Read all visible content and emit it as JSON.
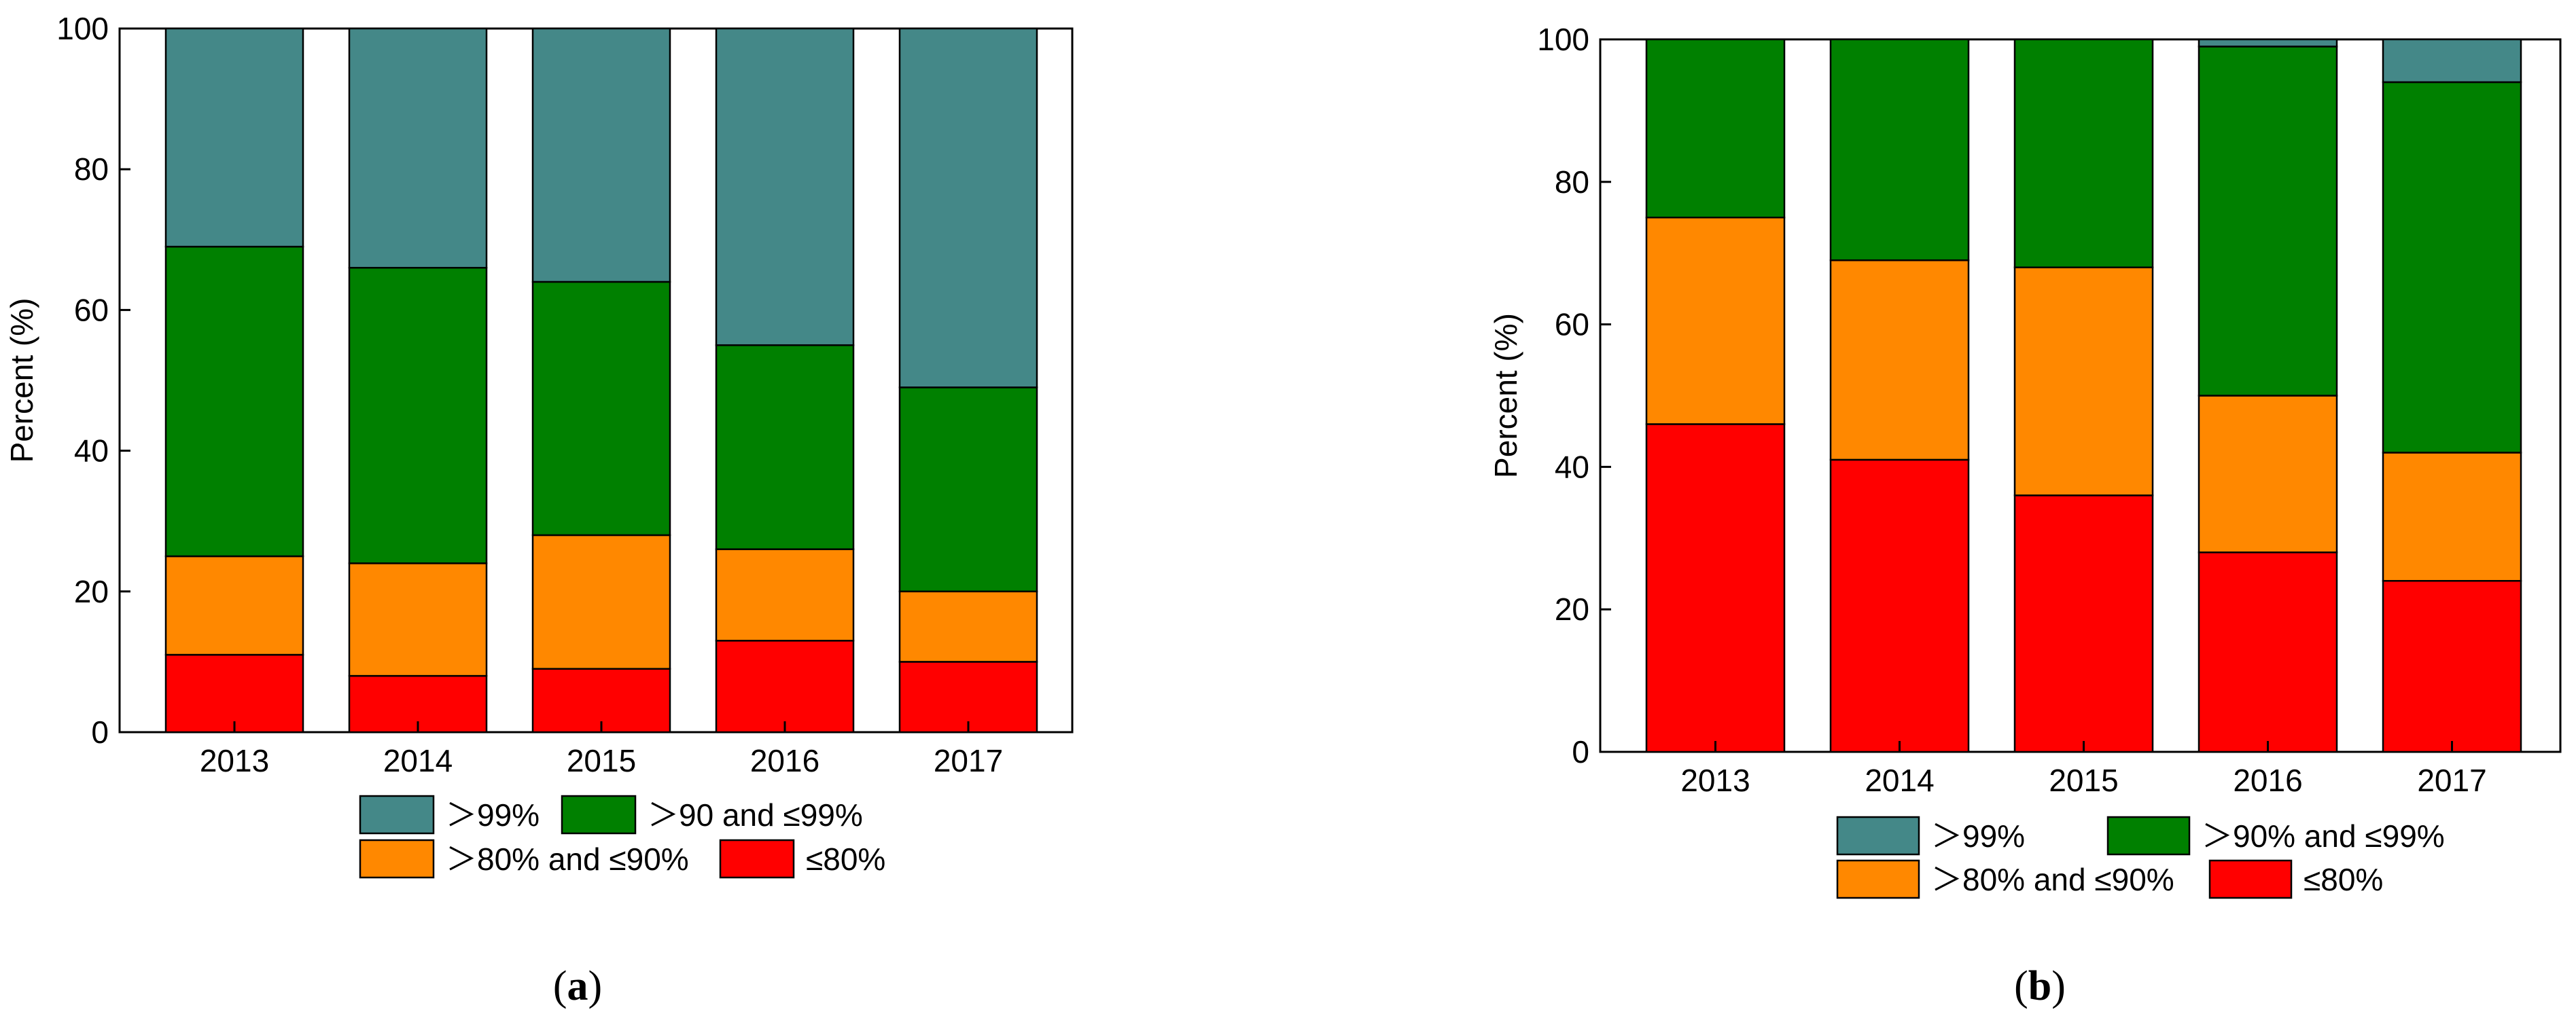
{
  "chart_data": [
    {
      "type": "bar",
      "stacked": true,
      "panel_label": "a",
      "title": "",
      "xlabel": "",
      "ylabel": "Percent (%)",
      "ylim": [
        0,
        100
      ],
      "yticks": [
        0,
        20,
        40,
        60,
        80,
        100
      ],
      "categories": [
        "2013",
        "2014",
        "2015",
        "2016",
        "2017"
      ],
      "series": [
        {
          "name": "≤80%",
          "color": "#ff0000",
          "values": [
            11,
            8,
            9,
            13,
            10
          ]
        },
        {
          "name": "＞80% and ≤90%",
          "color": "#ff8800",
          "values": [
            14,
            16,
            19,
            13,
            10
          ]
        },
        {
          "name": "＞90 and ≤99%",
          "color": "#008000",
          "values": [
            44,
            42,
            36,
            29,
            29
          ]
        },
        {
          "name": "＞99%",
          "color": "#448888",
          "values": [
            31,
            34,
            36,
            45,
            51
          ]
        }
      ],
      "legend_order": [
        3,
        2,
        1,
        0
      ],
      "legend_position": "bottom"
    },
    {
      "type": "bar",
      "stacked": true,
      "panel_label": "b",
      "title": "",
      "xlabel": "",
      "ylabel": "Percent (%)",
      "ylim": [
        0,
        100
      ],
      "yticks": [
        0,
        20,
        40,
        60,
        80,
        100
      ],
      "categories": [
        "2013",
        "2014",
        "2015",
        "2016",
        "2017"
      ],
      "series": [
        {
          "name": "≤80%",
          "color": "#ff0000",
          "values": [
            46,
            41,
            36,
            28,
            24
          ]
        },
        {
          "name": "＞80% and ≤90%",
          "color": "#ff8800",
          "values": [
            29,
            28,
            32,
            22,
            18
          ]
        },
        {
          "name": "＞90% and ≤99%",
          "color": "#008000",
          "values": [
            25,
            31,
            32,
            49,
            52
          ]
        },
        {
          "name": "＞99%",
          "color": "#448888",
          "values": [
            0,
            0,
            0,
            1,
            6
          ]
        }
      ],
      "legend_order": [
        3,
        2,
        1,
        0
      ],
      "legend_position": "bottom"
    }
  ]
}
